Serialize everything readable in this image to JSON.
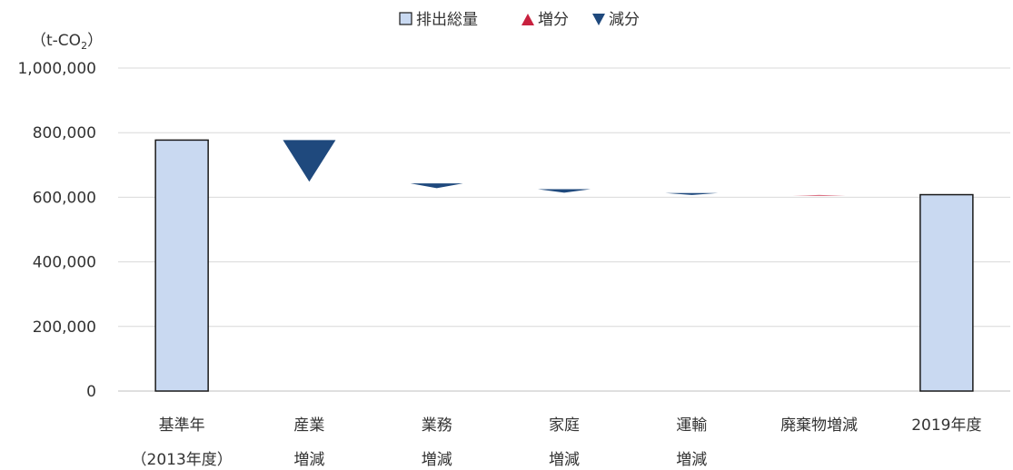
{
  "chart_data": {
    "type": "waterfall",
    "unit_label": "（t-CO",
    "unit_subscript": "2",
    "unit_close": "）",
    "legend": [
      {
        "marker": "square",
        "label": "排出総量",
        "color": "#c9d9f1"
      },
      {
        "marker": "triangle-up",
        "label": "増分",
        "color": "#c8213f"
      },
      {
        "marker": "triangle-down",
        "label": "減分",
        "color": "#1f497d"
      }
    ],
    "y_ticks": [
      "0",
      "200,000",
      "400,000",
      "600,000",
      "800,000",
      "1,000,000"
    ],
    "ylim": [
      0,
      1000000
    ],
    "gridlines": true,
    "categories": [
      {
        "lines": [
          "基準年",
          "（2013年度）"
        ],
        "kind": "total",
        "value": 777000
      },
      {
        "lines": [
          "産業",
          "増減"
        ],
        "kind": "decrease",
        "start": 777000,
        "end": 648000
      },
      {
        "lines": [
          "業務",
          "増減"
        ],
        "kind": "decrease",
        "start": 643000,
        "end": 628000
      },
      {
        "lines": [
          "家庭",
          "増減"
        ],
        "kind": "decrease",
        "start": 625000,
        "end": 614000
      },
      {
        "lines": [
          "運輸",
          "増減"
        ],
        "kind": "decrease",
        "start": 613000,
        "end": 607000
      },
      {
        "lines": [
          "廃棄物増減"
        ],
        "kind": "increase",
        "start": 605000,
        "end": 607000
      },
      {
        "lines": [
          "2019年度"
        ],
        "kind": "total",
        "value": 608000
      }
    ],
    "colors": {
      "total_fill": "#c9d9f1",
      "total_stroke": "#1a1a1a",
      "increase": "#c8213f",
      "decrease": "#1f497d",
      "grid": "#d9d9d9",
      "axis": "#bfbfbf"
    }
  }
}
